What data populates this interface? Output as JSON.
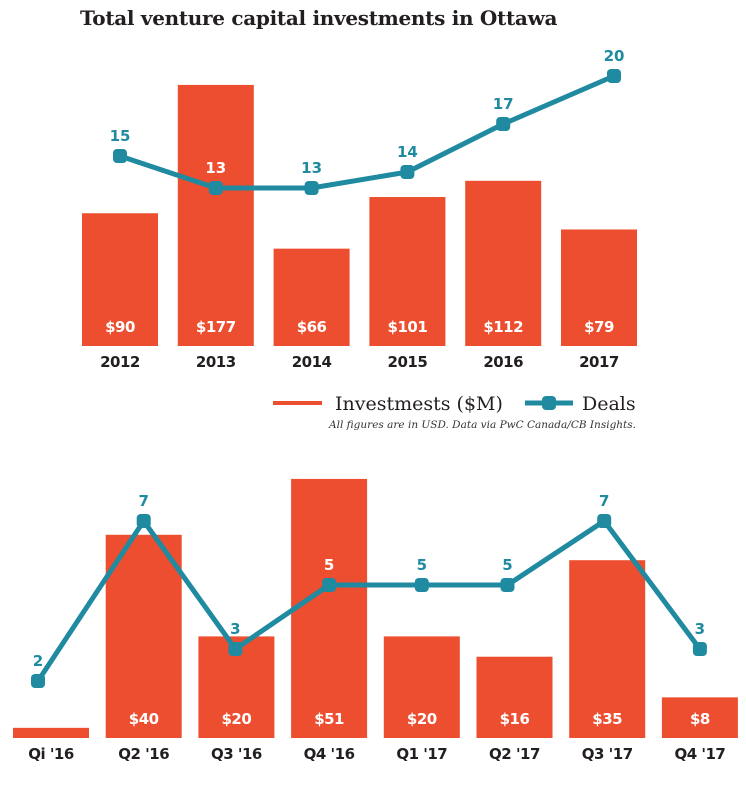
{
  "title": "Total venture capital investments in Ottawa",
  "colors": {
    "investments": "#ec4e2f",
    "deals": "#1f8aa0",
    "text": "#231f20"
  },
  "legend": {
    "investments_label": "Investmests ($M)",
    "deals_label": "Deals"
  },
  "source_note": "All figures are in USD. Data via PwC Canada/CB Insights.",
  "chart_data": [
    {
      "type": "bar",
      "subtype": "bar+line combo",
      "title": "Total venture capital investments in Ottawa",
      "xlabel": "",
      "ylabel": "",
      "categories": [
        "2012",
        "2013",
        "2014",
        "2015",
        "2016",
        "2017"
      ],
      "series": [
        {
          "name": "Investmests ($M)",
          "type": "bar",
          "values": [
            90,
            177,
            66,
            101,
            112,
            79
          ],
          "labels": [
            "$90",
            "$177",
            "$66",
            "$101",
            "$112",
            "$79"
          ]
        },
        {
          "name": "Deals",
          "type": "line",
          "values": [
            15,
            13,
            13,
            14,
            17,
            20
          ],
          "labels": [
            "15",
            "13",
            "13",
            "14",
            "17",
            "20"
          ]
        }
      ],
      "grid": false,
      "legend": "bottom-right"
    },
    {
      "type": "bar",
      "subtype": "bar+line combo",
      "title": "",
      "xlabel": "",
      "ylabel": "",
      "categories": [
        "Qi '16",
        "Q2 '16",
        "Q3 '16",
        "Q4 '16",
        "Q1 '17",
        "Q2 '17",
        "Q3 '17",
        "Q4 '17"
      ],
      "series": [
        {
          "name": "Investmests ($M)",
          "type": "bar",
          "values": [
            2,
            40,
            20,
            51,
            20,
            16,
            35,
            8
          ],
          "labels": [
            "",
            "$40",
            "$20",
            "$51",
            "$20",
            "$16",
            "$35",
            "$8"
          ]
        },
        {
          "name": "Deals",
          "type": "line",
          "values": [
            2,
            7,
            3,
            5,
            5,
            5,
            7,
            3
          ],
          "labels": [
            "2",
            "7",
            "3",
            "5",
            "5",
            "5",
            "7",
            "3"
          ]
        }
      ],
      "grid": false,
      "legend": "none"
    }
  ]
}
